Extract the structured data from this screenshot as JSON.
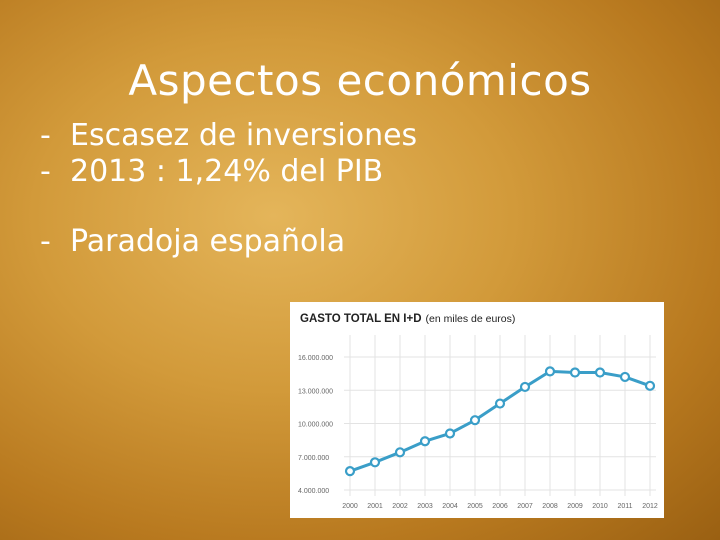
{
  "slide": {
    "title": "Aspectos económicos",
    "bullets": [
      {
        "marker": "-",
        "text": "Escasez de inversiones"
      },
      {
        "marker": "-",
        "text": "2013 : 1,24% del PIB"
      },
      {
        "marker": "-",
        "text": "Paradoja española"
      }
    ]
  },
  "colors": {
    "line": "#3a9ec8",
    "point_fill": "#ffffff",
    "grid": "#e3e3e3",
    "axis_text": "#666666",
    "title_text": "#222222"
  },
  "chart_data": {
    "type": "line",
    "title": "GASTO TOTAL EN I+D (en miles de euros)",
    "title_main": "GASTO TOTAL EN I+D",
    "title_unit": "(en miles de euros)",
    "categories": [
      "2000",
      "2001",
      "2002",
      "2003",
      "2004",
      "2005",
      "2006",
      "2007",
      "2008",
      "2009",
      "2010",
      "2011",
      "2012"
    ],
    "values": [
      5700000,
      6500000,
      7400000,
      8400000,
      9100000,
      10300000,
      11800000,
      13300000,
      14700000,
      14600000,
      14600000,
      14200000,
      13400000
    ],
    "ylim": [
      4000000,
      16000000
    ],
    "yticks": [
      4000000,
      7000000,
      10000000,
      13000000,
      16000000
    ],
    "ytick_labels": [
      "4.000.000",
      "7.000.000",
      "10.000.000",
      "13.000.000",
      "16.000.000"
    ],
    "grid": true
  }
}
